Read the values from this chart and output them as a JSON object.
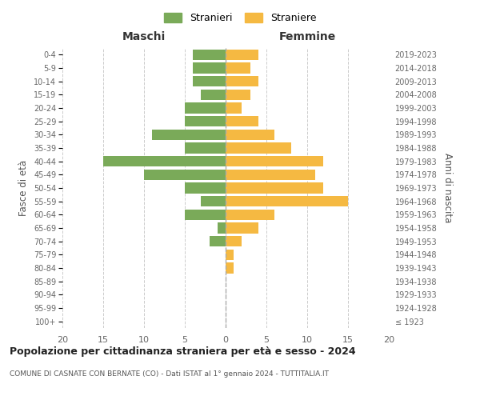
{
  "age_groups": [
    "100+",
    "95-99",
    "90-94",
    "85-89",
    "80-84",
    "75-79",
    "70-74",
    "65-69",
    "60-64",
    "55-59",
    "50-54",
    "45-49",
    "40-44",
    "35-39",
    "30-34",
    "25-29",
    "20-24",
    "15-19",
    "10-14",
    "5-9",
    "0-4"
  ],
  "birth_years": [
    "≤ 1923",
    "1924-1928",
    "1929-1933",
    "1934-1938",
    "1939-1943",
    "1944-1948",
    "1949-1953",
    "1954-1958",
    "1959-1963",
    "1964-1968",
    "1969-1973",
    "1974-1978",
    "1979-1983",
    "1984-1988",
    "1989-1993",
    "1994-1998",
    "1999-2003",
    "2004-2008",
    "2009-2013",
    "2014-2018",
    "2019-2023"
  ],
  "males": [
    0,
    0,
    0,
    0,
    0,
    0,
    2,
    1,
    5,
    3,
    5,
    10,
    15,
    5,
    9,
    5,
    5,
    3,
    4,
    4,
    4
  ],
  "females": [
    0,
    0,
    0,
    0,
    1,
    1,
    2,
    4,
    6,
    15,
    12,
    11,
    12,
    8,
    6,
    4,
    2,
    3,
    4,
    3,
    4
  ],
  "male_color": "#7aaa59",
  "female_color": "#f5b942",
  "background_color": "#ffffff",
  "grid_color": "#cccccc",
  "title": "Popolazione per cittadinanza straniera per età e sesso - 2024",
  "subtitle": "COMUNE DI CASNATE CON BERNATE (CO) - Dati ISTAT al 1° gennaio 2024 - TUTTITALIA.IT",
  "xlabel_left": "Maschi",
  "xlabel_right": "Femmine",
  "ylabel_left": "Fasce di età",
  "ylabel_right": "Anni di nascita",
  "legend_stranieri": "Stranieri",
  "legend_straniere": "Straniere",
  "xlim": 20,
  "bar_height": 0.8
}
